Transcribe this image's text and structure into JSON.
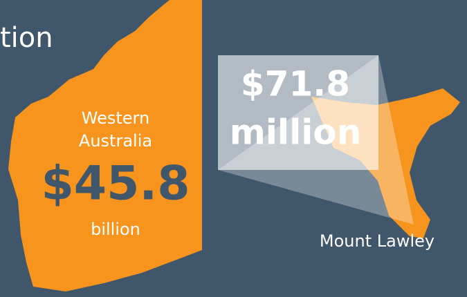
{
  "header": {
    "title": "tion"
  },
  "western_australia": {
    "label": [
      "Western",
      "Australia"
    ],
    "value": "$45.8",
    "unit": "billion"
  },
  "mount_lawley": {
    "label": "Mount Lawley",
    "value": "$71.8",
    "unit": "million"
  }
}
